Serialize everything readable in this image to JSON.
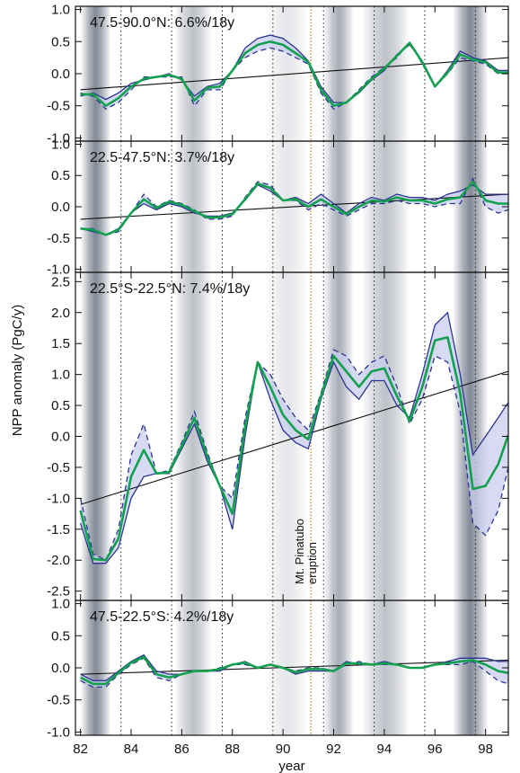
{
  "chart_data": {
    "type": "line",
    "ylabel": "NPP anomaly (PgC/y)",
    "xlabel": "year",
    "xlim": [
      81.8,
      98.9
    ],
    "xticks": [
      "82",
      "84",
      "86",
      "88",
      "90",
      "92",
      "94",
      "96",
      "98"
    ],
    "xtick_values": [
      82,
      84,
      86,
      88,
      90,
      92,
      94,
      96,
      98
    ],
    "dotted_years": [
      83.6,
      85.6,
      87.6,
      89.6,
      91.6,
      93.6,
      95.6,
      97.6
    ],
    "eruption_year": 91.1,
    "eruption_label": [
      "Mt. Pinatubo",
      "eruption"
    ],
    "colors": {
      "model_solid": "#2b3492",
      "model_dashed": "#2b3492",
      "band_fill": "#c9cdee",
      "mean": "#13a04f",
      "trend": "#111111",
      "eruption_line": "#c8922e",
      "shade": "#6d7686"
    },
    "shade_bands": [
      {
        "start": 82.0,
        "end": 83.2,
        "intensity": 0.85
      },
      {
        "start": 85.7,
        "end": 87.2,
        "intensity": 0.45
      },
      {
        "start": 89.3,
        "end": 91.0,
        "intensity": 0.18
      },
      {
        "start": 91.6,
        "end": 92.8,
        "intensity": 0.6
      },
      {
        "start": 93.1,
        "end": 95.0,
        "intensity": 0.45
      },
      {
        "start": 96.7,
        "end": 98.1,
        "intensity": 0.85
      }
    ],
    "panels": [
      {
        "label": "47.5-90.0°N: 6.6%/18y",
        "ylim": [
          -1.05,
          1.05
        ],
        "yticks": [
          -1.0,
          -0.5,
          0.0,
          0.5,
          1.0
        ],
        "ytick_labels": [
          "-1.0",
          "-0.5",
          "0.0",
          "0.5",
          "1.0"
        ],
        "trend": [
          [
            82.0,
            -0.25
          ],
          [
            98.9,
            0.25
          ]
        ],
        "x": [
          82.0,
          82.5,
          83.0,
          83.5,
          84.0,
          84.5,
          85.0,
          85.5,
          86.0,
          86.5,
          87.0,
          87.5,
          88.0,
          88.5,
          89.0,
          89.5,
          90.0,
          90.5,
          91.0,
          91.5,
          92.0,
          92.5,
          93.0,
          93.5,
          94.0,
          94.5,
          95.0,
          95.5,
          96.0,
          96.5,
          97.0,
          97.5,
          98.0,
          98.5,
          98.9
        ],
        "solid": [
          -0.35,
          -0.3,
          -0.4,
          -0.3,
          -0.15,
          -0.1,
          -0.05,
          0.0,
          -0.1,
          -0.35,
          -0.2,
          -0.15,
          0.05,
          0.4,
          0.55,
          0.6,
          0.55,
          0.4,
          0.2,
          -0.2,
          -0.45,
          -0.45,
          -0.3,
          -0.1,
          0.05,
          0.3,
          0.45,
          0.2,
          -0.2,
          0.05,
          0.35,
          0.25,
          0.2,
          0.05,
          0.05
        ],
        "dashed": [
          -0.3,
          -0.35,
          -0.55,
          -0.45,
          -0.25,
          -0.05,
          -0.05,
          -0.05,
          -0.05,
          -0.5,
          -0.25,
          -0.25,
          0.05,
          0.25,
          0.35,
          0.4,
          0.35,
          0.25,
          0.15,
          -0.3,
          -0.55,
          -0.45,
          -0.25,
          -0.05,
          0.1,
          0.25,
          0.5,
          0.15,
          -0.2,
          0.0,
          0.25,
          0.2,
          0.15,
          0.0,
          0.0
        ],
        "mean": [
          -0.32,
          -0.32,
          -0.5,
          -0.38,
          -0.2,
          -0.08,
          -0.05,
          -0.02,
          -0.08,
          -0.42,
          -0.22,
          -0.2,
          0.05,
          0.32,
          0.45,
          0.5,
          0.45,
          0.32,
          0.18,
          -0.25,
          -0.5,
          -0.45,
          -0.28,
          -0.08,
          0.08,
          0.28,
          0.48,
          0.18,
          -0.2,
          0.02,
          0.3,
          0.22,
          0.18,
          0.02,
          0.02
        ]
      },
      {
        "label": "22.5-47.5°N: 3.7%/18y",
        "ylim": [
          -1.05,
          1.05
        ],
        "yticks": [
          -1.0,
          -0.5,
          0.0,
          0.5,
          1.0
        ],
        "ytick_labels": [
          "-1.0",
          "-0.5",
          "0.0",
          "0.5",
          "1.0"
        ],
        "trend": [
          [
            82.0,
            -0.2
          ],
          [
            98.9,
            0.2
          ]
        ],
        "x": [
          82.0,
          82.5,
          83.0,
          83.5,
          84.0,
          84.5,
          85.0,
          85.5,
          86.0,
          86.5,
          87.0,
          87.5,
          88.0,
          88.5,
          89.0,
          89.5,
          90.0,
          90.5,
          91.0,
          91.5,
          92.0,
          92.5,
          93.0,
          93.5,
          94.0,
          94.5,
          95.0,
          95.5,
          96.0,
          96.5,
          97.0,
          97.5,
          98.0,
          98.5,
          98.9
        ],
        "solid": [
          -0.35,
          -0.4,
          -0.45,
          -0.35,
          -0.1,
          0.05,
          -0.05,
          0.05,
          0.0,
          -0.1,
          -0.15,
          -0.15,
          -0.1,
          0.1,
          0.35,
          0.25,
          0.1,
          0.15,
          0.05,
          0.2,
          0.05,
          -0.1,
          0.05,
          0.15,
          0.1,
          0.2,
          0.15,
          0.15,
          0.1,
          0.2,
          0.25,
          0.35,
          0.2,
          0.2,
          0.2
        ],
        "dashed": [
          -0.35,
          -0.35,
          -0.45,
          -0.4,
          -0.1,
          0.2,
          0.0,
          0.1,
          0.05,
          -0.05,
          -0.2,
          -0.2,
          -0.15,
          0.15,
          0.4,
          0.35,
          0.1,
          0.1,
          -0.05,
          0.05,
          -0.05,
          -0.15,
          -0.05,
          0.05,
          0.05,
          0.1,
          0.05,
          0.05,
          0.0,
          0.05,
          0.05,
          0.45,
          0.0,
          -0.1,
          -0.05
        ],
        "mean": [
          -0.35,
          -0.37,
          -0.45,
          -0.37,
          -0.1,
          0.12,
          -0.02,
          0.08,
          0.03,
          -0.07,
          -0.17,
          -0.17,
          -0.12,
          0.12,
          0.37,
          0.3,
          0.1,
          0.12,
          0.0,
          0.12,
          0.0,
          -0.12,
          0.0,
          0.1,
          0.08,
          0.15,
          0.1,
          0.1,
          0.05,
          0.12,
          0.15,
          0.4,
          0.1,
          0.05,
          0.05
        ]
      },
      {
        "label": "22.5°S-22.5°N: 7.4%/18y",
        "ylim": [
          -2.65,
          2.65
        ],
        "yticks": [
          -2.5,
          -2.0,
          -1.5,
          -1.0,
          -0.5,
          0.0,
          0.5,
          1.0,
          1.5,
          2.0,
          2.5
        ],
        "ytick_labels": [
          "-2.5",
          "-2.0",
          "-1.5",
          "-1.0",
          "-0.5",
          "0.0",
          "0.5",
          "1.0",
          "1.5",
          "2.0",
          "2.5"
        ],
        "trend": [
          [
            82.0,
            -1.1
          ],
          [
            98.9,
            1.05
          ]
        ],
        "x": [
          82.0,
          82.5,
          83.0,
          83.5,
          84.0,
          84.5,
          85.0,
          85.5,
          86.0,
          86.5,
          87.0,
          87.5,
          88.0,
          88.5,
          89.0,
          89.5,
          90.0,
          90.5,
          91.0,
          91.5,
          92.0,
          92.5,
          93.0,
          93.5,
          94.0,
          94.5,
          95.0,
          95.5,
          96.0,
          96.5,
          97.0,
          97.5,
          98.0,
          98.5,
          98.9
        ],
        "solid": [
          -1.4,
          -2.05,
          -2.05,
          -1.8,
          -1.0,
          -0.65,
          -0.6,
          -0.6,
          -0.2,
          0.2,
          -0.4,
          -0.8,
          -1.5,
          0.0,
          1.2,
          0.6,
          0.1,
          -0.1,
          -0.2,
          0.6,
          1.2,
          0.8,
          0.6,
          0.9,
          0.9,
          0.5,
          0.3,
          1.0,
          1.8,
          2.0,
          1.0,
          -0.3,
          0.0,
          0.3,
          0.55
        ],
        "dashed": [
          -1.0,
          -1.9,
          -2.0,
          -1.5,
          -0.3,
          0.2,
          -0.6,
          -0.55,
          -0.1,
          0.4,
          -0.25,
          -0.8,
          -1.0,
          0.3,
          1.2,
          1.0,
          0.6,
          0.3,
          0.1,
          0.7,
          1.4,
          1.3,
          1.0,
          1.2,
          1.3,
          0.8,
          0.2,
          0.6,
          1.3,
          1.2,
          0.4,
          -1.4,
          -1.6,
          -1.2,
          -0.5
        ],
        "mean": [
          -1.2,
          -1.98,
          -2.0,
          -1.65,
          -0.65,
          -0.22,
          -0.6,
          -0.58,
          -0.15,
          0.3,
          -0.32,
          -0.8,
          -1.25,
          0.15,
          1.2,
          0.8,
          0.35,
          0.1,
          -0.05,
          0.65,
          1.3,
          1.05,
          0.8,
          1.05,
          1.1,
          0.65,
          0.25,
          0.8,
          1.55,
          1.6,
          0.7,
          -0.85,
          -0.8,
          -0.45,
          0.02
        ]
      },
      {
        "label": "47.5-22.5°S: 4.2%/18y",
        "ylim": [
          -1.05,
          1.05
        ],
        "yticks": [
          -1.0,
          -0.5,
          0.0,
          0.5,
          1.0
        ],
        "ytick_labels": [
          "-1.0",
          "-0.5",
          "0.0",
          "0.5",
          "1.0"
        ],
        "trend": [
          [
            82.0,
            -0.1
          ],
          [
            98.9,
            0.12
          ]
        ],
        "x": [
          82.0,
          82.5,
          83.0,
          83.5,
          84.0,
          84.5,
          85.0,
          85.5,
          86.0,
          86.5,
          87.0,
          87.5,
          88.0,
          88.5,
          89.0,
          89.5,
          90.0,
          90.5,
          91.0,
          91.5,
          92.0,
          92.5,
          93.0,
          93.5,
          94.0,
          94.5,
          95.0,
          95.5,
          96.0,
          96.5,
          97.0,
          97.5,
          98.0,
          98.5,
          98.9
        ],
        "solid": [
          -0.1,
          -0.2,
          -0.2,
          -0.05,
          0.1,
          0.2,
          -0.05,
          -0.1,
          -0.1,
          -0.05,
          -0.05,
          -0.05,
          0.05,
          0.1,
          0.0,
          0.05,
          0.0,
          -0.1,
          -0.05,
          -0.05,
          -0.05,
          0.1,
          0.05,
          0.05,
          0.1,
          0.05,
          0.0,
          0.0,
          0.05,
          0.1,
          0.15,
          0.15,
          0.15,
          0.1,
          0.1
        ],
        "dashed": [
          -0.2,
          -0.3,
          -0.3,
          -0.1,
          0.05,
          0.15,
          -0.15,
          -0.2,
          -0.1,
          -0.05,
          -0.05,
          0.0,
          0.05,
          0.05,
          0.0,
          0.05,
          0.0,
          -0.05,
          0.0,
          0.0,
          -0.05,
          0.05,
          0.1,
          0.05,
          0.05,
          0.05,
          0.0,
          0.0,
          0.05,
          0.05,
          0.05,
          0.1,
          -0.05,
          -0.2,
          -0.25
        ],
        "mean": [
          -0.15,
          -0.25,
          -0.25,
          -0.08,
          0.08,
          0.17,
          -0.1,
          -0.15,
          -0.1,
          -0.05,
          -0.05,
          -0.02,
          0.05,
          0.08,
          0.0,
          0.05,
          0.0,
          -0.07,
          -0.02,
          -0.02,
          -0.05,
          0.07,
          0.07,
          0.05,
          0.07,
          0.05,
          0.0,
          0.0,
          0.05,
          0.07,
          0.1,
          0.12,
          0.05,
          -0.05,
          -0.08
        ]
      }
    ]
  }
}
